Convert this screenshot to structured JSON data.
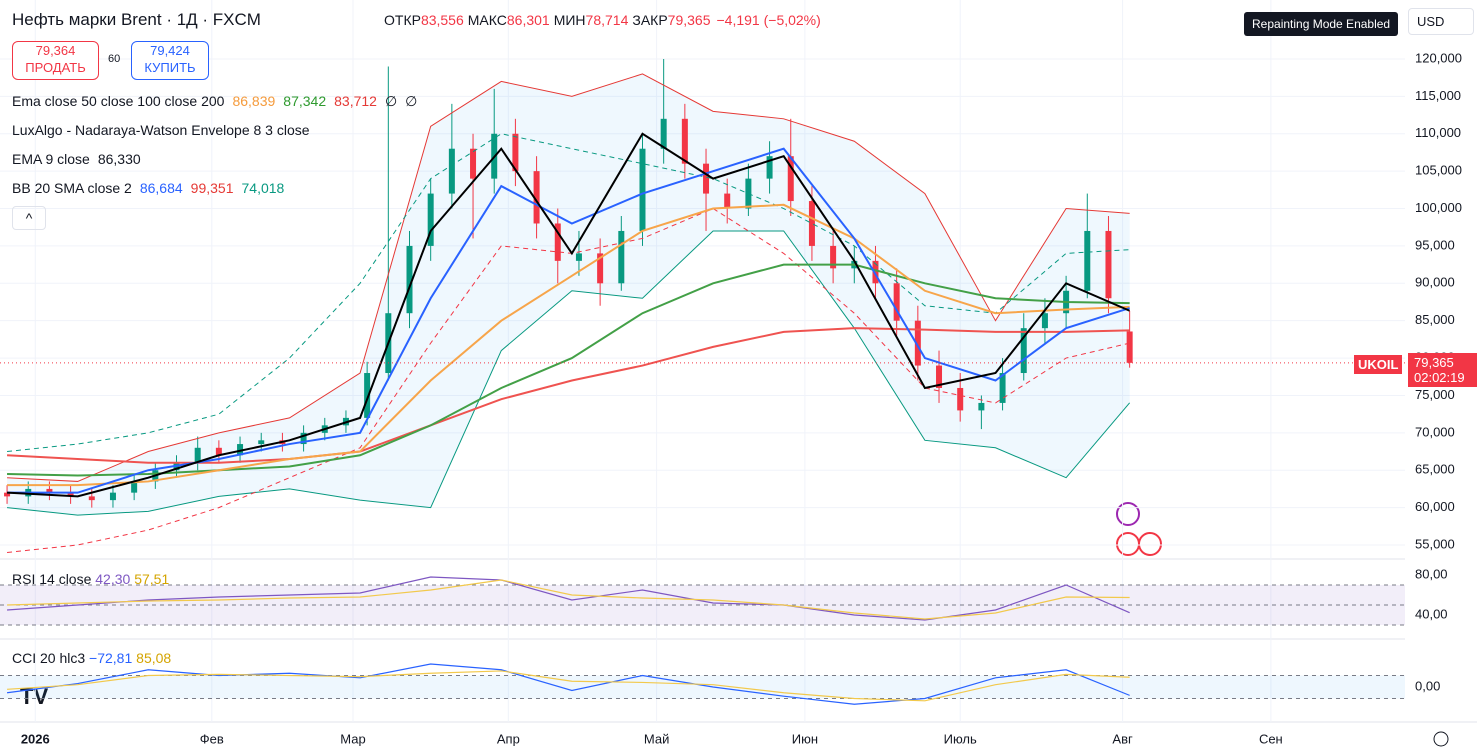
{
  "header": {
    "symbol": "Нефть марки Brent · 1Д · FXCM",
    "ohlc": [
      {
        "label": "ОТКР",
        "value": "83,556"
      },
      {
        "label": "МАКС",
        "value": "86,301"
      },
      {
        "label": "МИН",
        "value": "78,714"
      },
      {
        "label": "ЗАКР",
        "value": "79,365"
      }
    ],
    "change": "−4,191 (−5,02%)"
  },
  "trade": {
    "sell_price": "79,364",
    "sell": "ПРОДАТЬ",
    "spread": "60",
    "buy_price": "79,424",
    "buy": "КУПИТЬ"
  },
  "legend": [
    {
      "title": "Ema close 50 close 100 close 200",
      "values": [
        {
          "text": "86,839",
          "color": "#f59b3c"
        },
        {
          "text": "87,342",
          "color": "#2e9a2e"
        },
        {
          "text": "83,712",
          "color": "#e53935"
        },
        {
          "text": "∅",
          "color": "#131722"
        },
        {
          "text": "∅",
          "color": "#131722"
        }
      ]
    },
    {
      "title": "LuxAlgo - Nadaraya-Watson Envelope 8 3 close",
      "values": []
    },
    {
      "title": "EMA 9 close",
      "values": [
        {
          "text": "86,330",
          "color": "#131722"
        }
      ]
    },
    {
      "title": "BB 20 SMA close 2",
      "values": [
        {
          "text": "86,684",
          "color": "#2962ff"
        },
        {
          "text": "99,351",
          "color": "#e53935"
        },
        {
          "text": "74,018",
          "color": "#089981"
        }
      ]
    }
  ],
  "top_right": {
    "badge": "Repainting Mode Enabled",
    "currency": "USD"
  },
  "price_label": {
    "symbol": "UKOIL",
    "price": "79,365",
    "countdown": "02:02:19"
  },
  "chart_data": {
    "type": "candlestick",
    "up_color": "#089981",
    "down_color": "#f23645",
    "xlim": [
      -1,
      198
    ],
    "ylim": [
      53260,
      127890
    ],
    "xticks": [
      {
        "value": 4,
        "label": "2026"
      },
      {
        "value": 29,
        "label": "Фев"
      },
      {
        "value": 49,
        "label": "Мар"
      },
      {
        "value": 71,
        "label": "Апр"
      },
      {
        "value": 92,
        "label": "Май"
      },
      {
        "value": 113,
        "label": "Июн"
      },
      {
        "value": 135,
        "label": "Июль"
      },
      {
        "value": 158,
        "label": "Авг"
      },
      {
        "value": 179,
        "label": "Сен"
      }
    ],
    "yticks": [
      {
        "value": 120000,
        "label": "120,000"
      },
      {
        "value": 115000,
        "label": "115,000"
      },
      {
        "value": 110000,
        "label": "110,000"
      },
      {
        "value": 105000,
        "label": "105,000"
      },
      {
        "value": 100000,
        "label": "100,000"
      },
      {
        "value": 95000,
        "label": "95,000"
      },
      {
        "value": 90000,
        "label": "90,000"
      },
      {
        "value": 85000,
        "label": "85,000"
      },
      {
        "value": 80000,
        "label": "80,000"
      },
      {
        "value": 75000,
        "label": "75,000"
      },
      {
        "value": 70000,
        "label": "70,000"
      },
      {
        "value": 65000,
        "label": "65,000"
      },
      {
        "value": 60000,
        "label": "60,000"
      },
      {
        "value": 55000,
        "label": "55,000"
      }
    ],
    "grid": true,
    "candles": {
      "x": [
        0,
        3,
        6,
        9,
        12,
        15,
        18,
        21,
        24,
        27,
        30,
        33,
        36,
        39,
        42,
        45,
        48,
        51,
        54,
        57,
        60,
        63,
        66,
        69,
        72,
        75,
        78,
        81,
        84,
        87,
        90,
        93,
        96,
        99,
        102,
        105,
        108,
        111,
        114,
        117,
        120,
        123,
        126,
        129,
        132,
        135,
        138,
        141,
        144,
        147,
        150,
        153,
        156,
        159
      ],
      "open": [
        62000,
        61500,
        62500,
        62000,
        61500,
        61000,
        62000,
        63500,
        65000,
        66000,
        68000,
        67000,
        68500,
        69000,
        68500,
        70000,
        71000,
        72000,
        78000,
        86000,
        95000,
        102000,
        108000,
        104000,
        110000,
        105000,
        98000,
        93000,
        94000,
        90000,
        97000,
        108000,
        112000,
        106000,
        102000,
        100000,
        104000,
        107000,
        101000,
        95000,
        92000,
        93000,
        90000,
        85000,
        79000,
        76000,
        73000,
        74000,
        78000,
        84000,
        86000,
        89000,
        97000,
        83556
      ],
      "high": [
        63000,
        63500,
        63500,
        63000,
        62500,
        63000,
        64500,
        66000,
        67000,
        69500,
        69000,
        69500,
        70000,
        70000,
        71000,
        72000,
        73000,
        79500,
        119000,
        97000,
        104000,
        114000,
        110000,
        116000,
        112000,
        107000,
        100000,
        97000,
        96000,
        99000,
        110000,
        120000,
        114000,
        108000,
        104000,
        106000,
        109000,
        112000,
        103000,
        97000,
        95000,
        95000,
        92000,
        87000,
        81000,
        78000,
        75000,
        80000,
        86000,
        88000,
        91000,
        102000,
        99000,
        86301
      ],
      "low": [
        60500,
        60500,
        61000,
        60500,
        60000,
        60000,
        61000,
        62500,
        64000,
        65000,
        66000,
        66000,
        67500,
        67500,
        67500,
        69000,
        70000,
        71000,
        77000,
        84000,
        93000,
        100000,
        96000,
        102000,
        103000,
        96000,
        90000,
        91000,
        87000,
        89000,
        95000,
        106000,
        104000,
        97000,
        98000,
        99000,
        102000,
        99000,
        93000,
        90000,
        90000,
        88000,
        83000,
        77000,
        74000,
        71500,
        70500,
        73000,
        77000,
        82000,
        84000,
        88000,
        86000,
        78714
      ],
      "close": [
        61500,
        62500,
        62000,
        61500,
        61000,
        62000,
        63500,
        65000,
        66000,
        68000,
        67000,
        68500,
        69000,
        68500,
        70000,
        71000,
        72000,
        78000,
        86000,
        95000,
        102000,
        108000,
        104000,
        110000,
        105000,
        98000,
        93000,
        94000,
        90000,
        97000,
        108000,
        112000,
        106000,
        102000,
        100000,
        104000,
        107000,
        101000,
        95000,
        92000,
        93000,
        90000,
        85000,
        79000,
        76000,
        73000,
        74000,
        78000,
        84000,
        86000,
        89000,
        97000,
        88000,
        79365
      ]
    },
    "line_x": [
      0,
      10,
      20,
      30,
      40,
      50,
      60,
      70,
      80,
      90,
      100,
      110,
      120,
      130,
      140,
      150,
      159
    ],
    "bands": {
      "upper": [
        64000,
        63500,
        67500,
        70000,
        72000,
        78000,
        111000,
        117000,
        115000,
        118000,
        113000,
        112000,
        109000,
        102000,
        85000,
        100000,
        99351
      ],
      "lower": [
        60000,
        59000,
        59500,
        61500,
        62500,
        61000,
        60000,
        81000,
        89000,
        88000,
        97000,
        97000,
        84000,
        69000,
        68000,
        64000,
        74018
      ],
      "fill": "rgba(33,150,243,0.07)"
    },
    "lines": [
      {
        "color": "#e53935",
        "dash": false,
        "width": 1,
        "values": [
          64000,
          63500,
          67500,
          70000,
          72000,
          78000,
          111000,
          117000,
          115000,
          118000,
          113000,
          112000,
          109000,
          102000,
          85000,
          100000,
          99351
        ]
      },
      {
        "color": "#089981",
        "dash": false,
        "width": 1,
        "values": [
          60000,
          59000,
          59500,
          61500,
          62500,
          61000,
          60000,
          81000,
          89000,
          88000,
          97000,
          97000,
          84000,
          69000,
          68000,
          64000,
          74018
        ]
      },
      {
        "color": "#089981",
        "dash": true,
        "width": 1,
        "values": [
          67500,
          68500,
          70000,
          72500,
          80000,
          90000,
          104000,
          110000,
          108000,
          106000,
          104000,
          100000,
          95000,
          87000,
          86000,
          94000,
          94500
        ]
      },
      {
        "color": "#f23645",
        "dash": true,
        "width": 1,
        "values": [
          54000,
          55000,
          57000,
          60000,
          64000,
          68000,
          82000,
          95000,
          94000,
          96000,
          100000,
          94000,
          86000,
          76000,
          74000,
          80000,
          82000
        ]
      },
      {
        "color": "#ef5350",
        "dash": false,
        "width": 2,
        "values": [
          67000,
          66500,
          66000,
          66000,
          66500,
          67500,
          71000,
          74500,
          77000,
          79000,
          81500,
          83500,
          84000,
          83800,
          83500,
          83500,
          83712
        ]
      },
      {
        "color": "#43a047",
        "dash": false,
        "width": 2,
        "values": [
          64500,
          64300,
          64500,
          65000,
          65500,
          67000,
          71000,
          76000,
          80000,
          86000,
          90000,
          92500,
          92500,
          90000,
          88000,
          87500,
          87342
        ]
      },
      {
        "color": "#f7a54a",
        "dash": false,
        "width": 2,
        "values": [
          63000,
          63000,
          63500,
          65000,
          66500,
          67500,
          77000,
          85000,
          91000,
          97000,
          100000,
          100500,
          96000,
          89000,
          86000,
          86500,
          86839
        ]
      },
      {
        "color": "#2962ff",
        "dash": false,
        "width": 2,
        "values": [
          62000,
          62000,
          65000,
          66500,
          68500,
          70000,
          88000,
          103000,
          98000,
          102000,
          105000,
          108000,
          96000,
          80000,
          77000,
          84000,
          86684
        ]
      },
      {
        "color": "#000000",
        "dash": false,
        "width": 2,
        "values": [
          62000,
          61500,
          64000,
          67000,
          69000,
          72000,
          97000,
          108000,
          94000,
          110000,
          104000,
          107000,
          93000,
          76000,
          78000,
          90000,
          86330
        ]
      }
    ],
    "rsi_pane": {
      "title": "RSI 14 close",
      "legend_values": [
        "42,30",
        "57,51"
      ],
      "ylim": [
        20,
        95
      ],
      "yticks": [
        {
          "value": 80,
          "label": "80,00"
        },
        {
          "value": 40,
          "label": "40,00"
        }
      ],
      "bands": [
        70,
        50,
        30
      ],
      "series": [
        {
          "color": "#7e57c2",
          "values": [
            45,
            50,
            55,
            58,
            60,
            62,
            78,
            75,
            55,
            65,
            52,
            50,
            40,
            35,
            45,
            70,
            42.3
          ]
        },
        {
          "color": "#f2c94c",
          "values": [
            50,
            52,
            54,
            55,
            57,
            58,
            65,
            75,
            60,
            57,
            55,
            50,
            42,
            36,
            42,
            58,
            57.51
          ]
        }
      ]
    },
    "cci_pane": {
      "title": "CCI 20 hlc3",
      "legend_values": [
        "−72,81",
        "85,08"
      ],
      "ylim": [
        -287,
        409
      ],
      "yticks": [
        {
          "value": 0,
          "label": "0,00"
        }
      ],
      "bands": [
        100,
        -100
      ],
      "series": [
        {
          "color": "#2962ff",
          "values": [
            -50,
            30,
            150,
            100,
            120,
            80,
            200,
            150,
            -30,
            100,
            0,
            -80,
            -150,
            -100,
            80,
            150,
            -72.81
          ]
        },
        {
          "color": "#f2c94c",
          "values": [
            -20,
            20,
            100,
            110,
            100,
            90,
            120,
            140,
            50,
            40,
            20,
            -50,
            -100,
            -120,
            20,
            110,
            85.08
          ]
        }
      ]
    }
  }
}
